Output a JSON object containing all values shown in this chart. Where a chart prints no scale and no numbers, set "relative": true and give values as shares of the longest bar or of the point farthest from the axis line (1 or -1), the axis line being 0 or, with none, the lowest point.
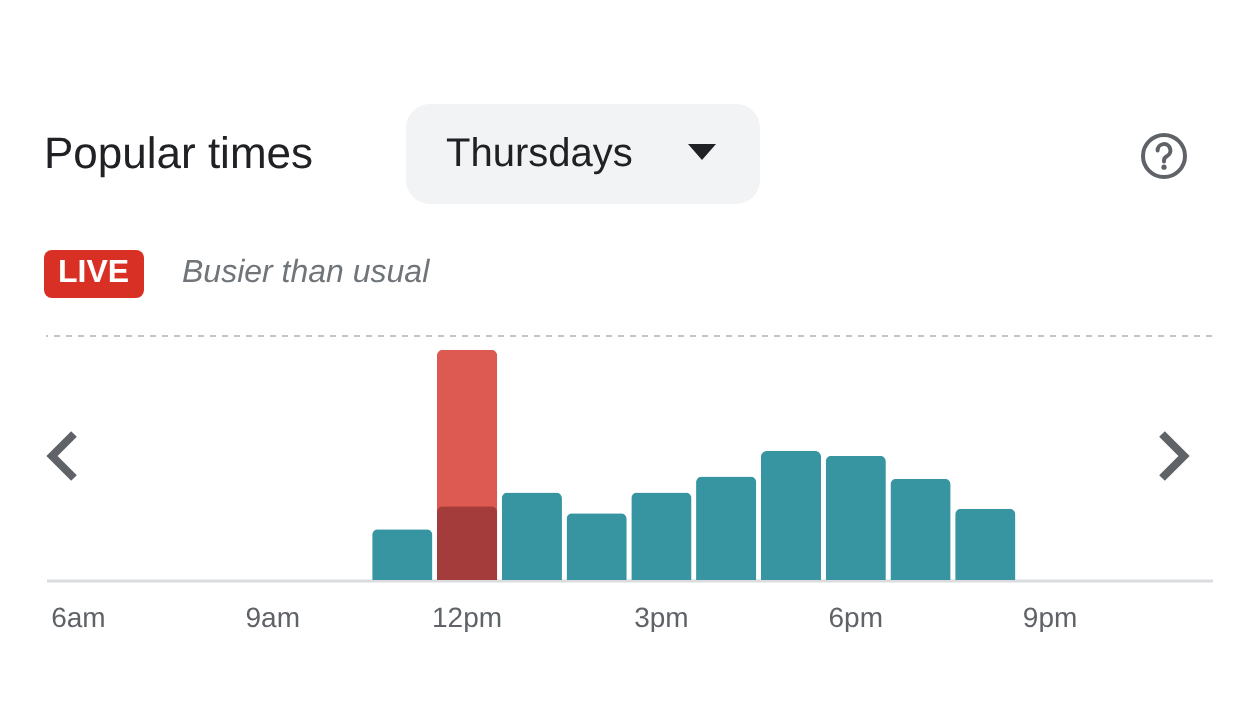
{
  "chart_data": {
    "type": "bar",
    "title": "Popular times",
    "subtitle": "Thursdays",
    "annotations": [
      "LIVE",
      "Busier than usual"
    ],
    "relative": true,
    "categories": [
      "6am",
      null,
      null,
      "9am",
      null,
      null,
      "12pm",
      null,
      null,
      "3pm",
      null,
      null,
      "6pm",
      null,
      null,
      "9pm",
      null,
      null
    ],
    "series": [
      {
        "color": "#dc5a52",
        "values": [
          null,
          null,
          null,
          null,
          null,
          null,
          1,
          null,
          null,
          null,
          null,
          null,
          null,
          null,
          null,
          null,
          null,
          null
        ]
      },
      {
        "colors": [
          null,
          null,
          null,
          null,
          null,
          "#3795a1",
          "#a33c3a",
          "#3795a1",
          "#3795a1",
          "#3795a1",
          "#3795a1",
          "#3795a1",
          "#3795a1",
          "#3795a1",
          "#3795a1",
          null,
          null,
          null
        ],
        "values": [
          null,
          null,
          null,
          null,
          null,
          0.22,
          0.32,
          0.38,
          0.29,
          0.38,
          0.45,
          0.56,
          0.54,
          0.44,
          0.31,
          null,
          null,
          null
        ]
      }
    ],
    "ref_lines": [
      {
        "axis": "y",
        "value": 1.06,
        "color": "#c4c4c4",
        "line_style": "dashed"
      }
    ],
    "grid": false
  }
}
